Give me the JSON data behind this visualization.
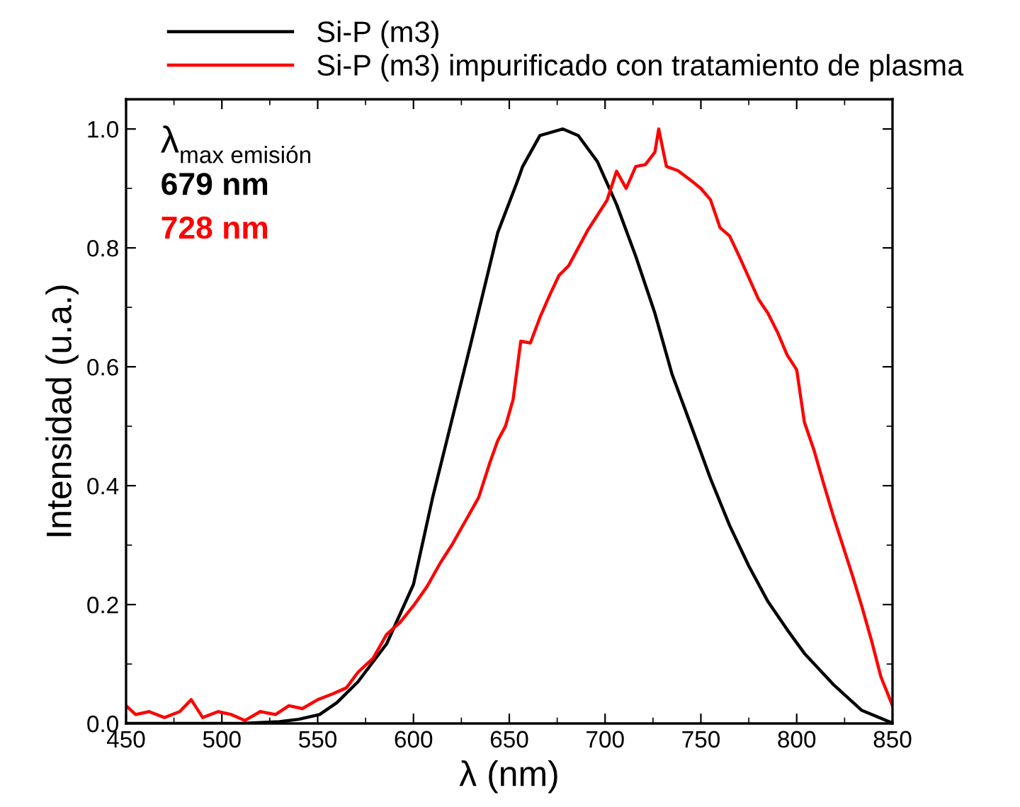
{
  "chart_data": {
    "type": "line",
    "xlabel": "λ (nm)",
    "ylabel": "Intensidad (u.a.)",
    "xlim": [
      450,
      850
    ],
    "xticks": [
      450,
      500,
      550,
      600,
      650,
      700,
      750,
      800,
      850
    ],
    "ylim": [
      0,
      1.05
    ],
    "yticks": [
      {
        "value": 0,
        "label": "0.0"
      },
      {
        "value": 0.2,
        "label": "0.2"
      },
      {
        "value": 0.4,
        "label": "0.4"
      },
      {
        "value": 0.6,
        "label": "0.6"
      },
      {
        "value": 0.8,
        "label": "0.8"
      },
      {
        "value": 1.0,
        "label": "1.0"
      }
    ],
    "grid": false,
    "legend": "top",
    "marker": "none",
    "line_style": "solid",
    "annotations": [
      "λ$_{max emisión}$",
      "679 nm",
      "728 nm"
    ],
    "series": [
      {
        "name": "Si-P (m3)",
        "color": "#000000",
        "x": [
          450,
          480,
          510,
          530,
          540,
          551,
          560,
          571,
          586,
          600,
          610,
          620,
          630,
          644,
          654,
          657,
          666,
          678,
          686,
          696,
          706,
          716,
          726,
          735,
          745,
          755,
          765,
          775,
          785,
          795,
          804,
          819,
          834,
          849
        ],
        "values": [
          0,
          0,
          0,
          0.003,
          0.007,
          0.015,
          0.035,
          0.07,
          0.134,
          0.234,
          0.38,
          0.51,
          0.64,
          0.826,
          0.91,
          0.937,
          0.989,
          1.0,
          0.989,
          0.945,
          0.873,
          0.786,
          0.69,
          0.587,
          0.5,
          0.412,
          0.333,
          0.265,
          0.205,
          0.158,
          0.118,
          0.066,
          0.022,
          0.002
        ]
      },
      {
        "name": "Si-P (m3) impurificado con tratamiento de plasma",
        "color": "#ff0000",
        "x": [
          450,
          455,
          462,
          470,
          478,
          484,
          490,
          498,
          505,
          512,
          520,
          528,
          535,
          542,
          550,
          558,
          565,
          571,
          579,
          586,
          593,
          600,
          607,
          614,
          620,
          627,
          634,
          640,
          644,
          648,
          652,
          656,
          661,
          666,
          671,
          676,
          681,
          686,
          691,
          696,
          701,
          706,
          711,
          716,
          721,
          726,
          728,
          732,
          738,
          745,
          750,
          755,
          760,
          765,
          770,
          775,
          780,
          785,
          790,
          795,
          800,
          804,
          809,
          814,
          819,
          824,
          829,
          834,
          839,
          844,
          850
        ],
        "values": [
          0.03,
          0.015,
          0.02,
          0.01,
          0.02,
          0.04,
          0.01,
          0.02,
          0.015,
          0.005,
          0.02,
          0.015,
          0.03,
          0.025,
          0.04,
          0.05,
          0.06,
          0.086,
          0.11,
          0.15,
          0.17,
          0.198,
          0.23,
          0.27,
          0.3,
          0.34,
          0.38,
          0.44,
          0.476,
          0.5,
          0.545,
          0.643,
          0.64,
          0.683,
          0.72,
          0.754,
          0.77,
          0.8,
          0.83,
          0.855,
          0.88,
          0.929,
          0.9,
          0.937,
          0.94,
          0.961,
          1.0,
          0.937,
          0.93,
          0.913,
          0.9,
          0.881,
          0.834,
          0.82,
          0.786,
          0.75,
          0.714,
          0.69,
          0.658,
          0.62,
          0.595,
          0.507,
          0.46,
          0.404,
          0.35,
          0.3,
          0.25,
          0.197,
          0.14,
          0.078,
          0.03
        ]
      }
    ]
  }
}
